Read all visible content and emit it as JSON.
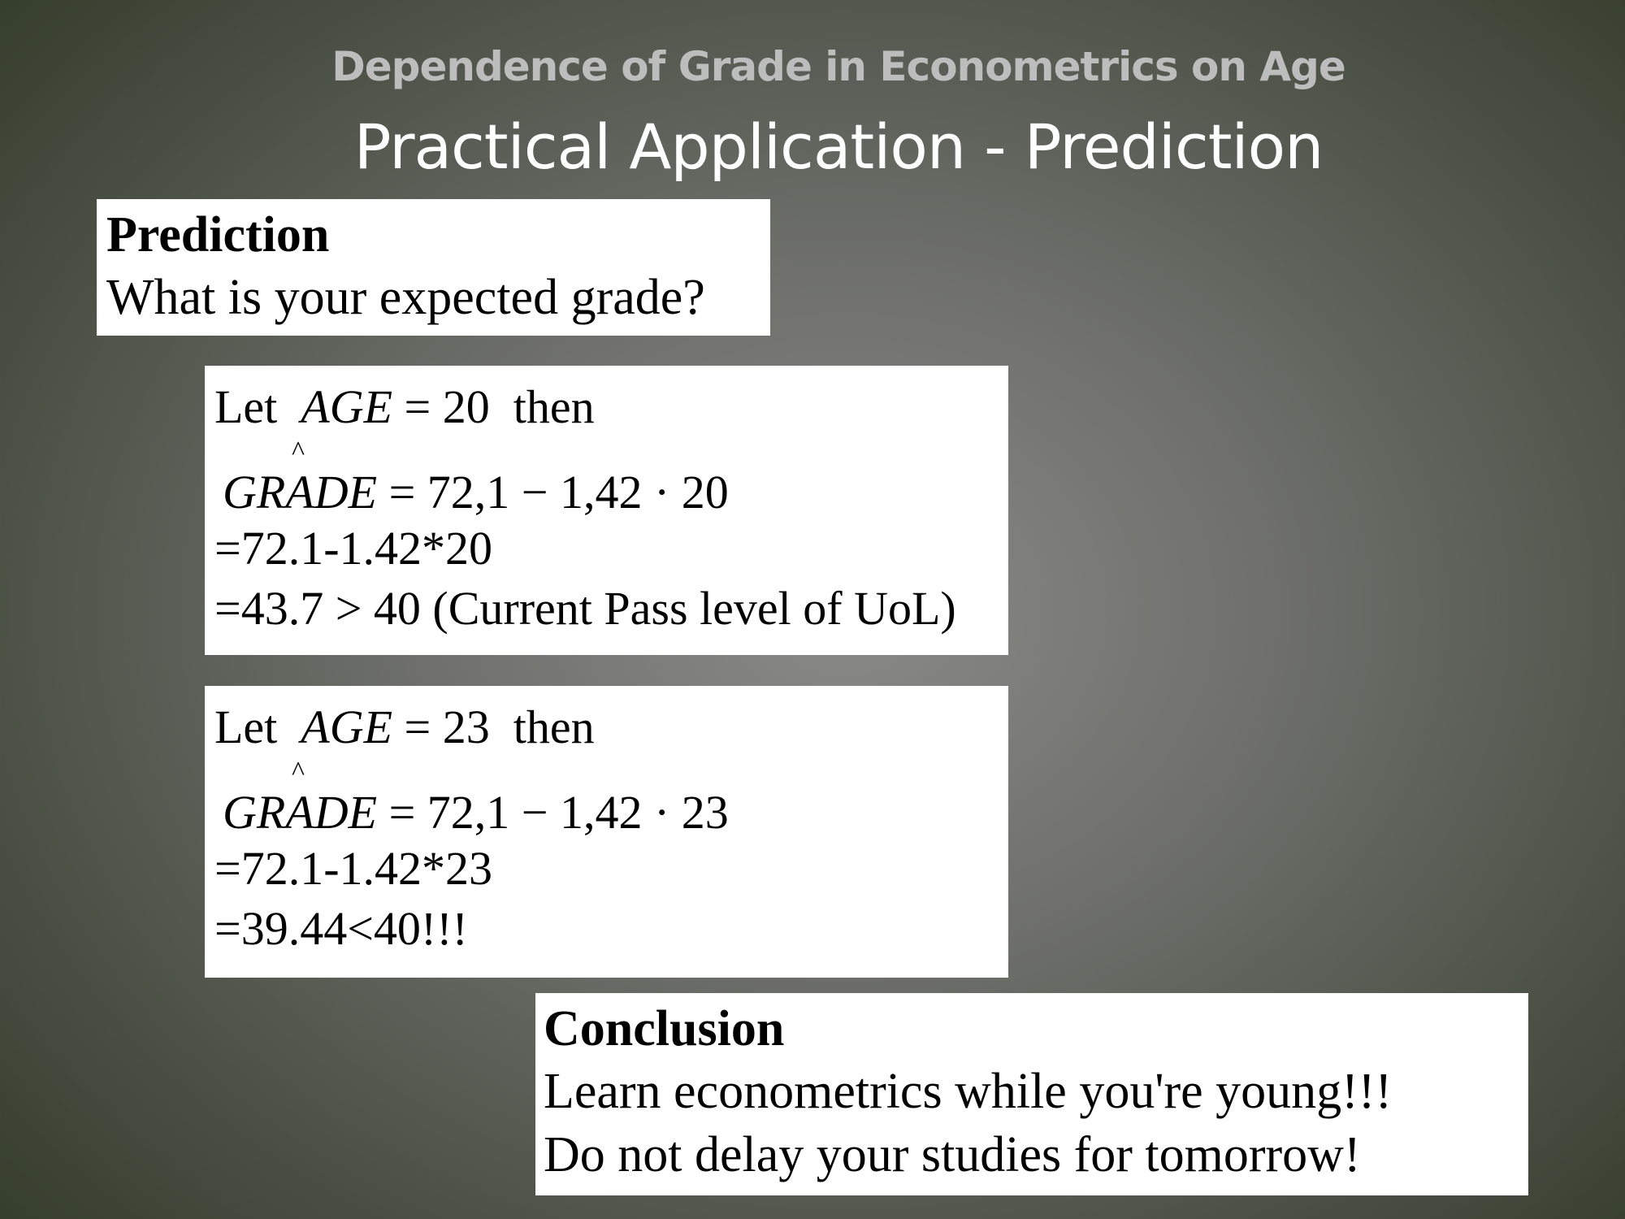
{
  "header": {
    "subtitle": "Dependence of Grade in Econometrics on Age",
    "title": "Practical Application - Prediction"
  },
  "prediction_box": {
    "heading": "Prediction",
    "question": "What is your expected grade?"
  },
  "cases": [
    {
      "let": "Let",
      "var": "AGE",
      "assign": "= 20",
      "then": "then",
      "hat": "^",
      "lhs": "GRADE",
      "rhs": "= 72,1 − 1,42 · 20",
      "calc": "=72.1-1.42*20",
      "result": "=43.7 > 40 (Current Pass level of UoL)"
    },
    {
      "let": "Let",
      "var": "AGE",
      "assign": "= 23",
      "then": "then",
      "hat": "^",
      "lhs": "GRADE",
      "rhs": "= 72,1 − 1,42 · 23",
      "calc": "=72.1-1.42*23",
      "result": "=39.44<40!!!"
    }
  ],
  "conclusion_box": {
    "heading": "Conclusion",
    "line1": "Learn econometrics while you're young!!!",
    "line2": "Do not delay your studies for tomorrow!"
  }
}
